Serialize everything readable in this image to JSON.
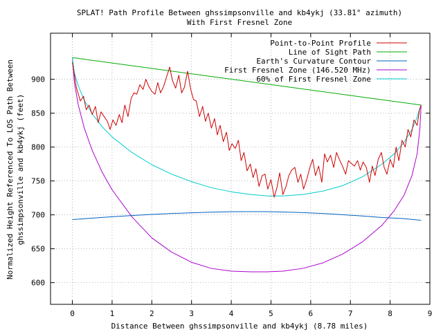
{
  "chart_data": {
    "type": "line",
    "title": "SPLAT! Path Profile Between ghssimpsonville and kb4ykj (33.81° azimuth)",
    "subtitle": "With First Fresnel Zone",
    "xlabel": "Distance Between ghssimpsonville and kb4ykj (8.78 miles)",
    "ylabel_line1": "Normalized Height Referenced To LOS Path Between",
    "ylabel_line2": "ghssimpsonville and kb4ykj (feet)",
    "xlim": [
      -0.55,
      9.0
    ],
    "ylim": [
      568,
      968
    ],
    "xticks": [
      0,
      1,
      2,
      3,
      4,
      5,
      6,
      7,
      8,
      9
    ],
    "yticks": [
      600,
      650,
      700,
      750,
      800,
      850,
      900
    ],
    "grid": true,
    "legend_position": "top-right",
    "series": [
      {
        "name": "Point-to-Point Profile",
        "color": "#cc0000",
        "x": [
          0.0,
          0.1,
          0.2,
          0.28,
          0.35,
          0.42,
          0.5,
          0.58,
          0.65,
          0.72,
          0.8,
          0.88,
          0.95,
          1.02,
          1.1,
          1.18,
          1.25,
          1.32,
          1.4,
          1.48,
          1.55,
          1.62,
          1.7,
          1.78,
          1.85,
          1.92,
          2.0,
          2.08,
          2.15,
          2.22,
          2.3,
          2.38,
          2.45,
          2.52,
          2.6,
          2.68,
          2.75,
          2.82,
          2.9,
          2.98,
          3.05,
          3.12,
          3.2,
          3.28,
          3.35,
          3.42,
          3.5,
          3.58,
          3.65,
          3.72,
          3.8,
          3.88,
          3.95,
          4.02,
          4.1,
          4.18,
          4.25,
          4.32,
          4.4,
          4.48,
          4.55,
          4.62,
          4.7,
          4.78,
          4.85,
          4.92,
          5.0,
          5.08,
          5.15,
          5.22,
          5.3,
          5.38,
          5.45,
          5.52,
          5.6,
          5.68,
          5.75,
          5.82,
          5.9,
          5.98,
          6.05,
          6.12,
          6.2,
          6.28,
          6.35,
          6.42,
          6.5,
          6.58,
          6.65,
          6.72,
          6.8,
          6.88,
          6.95,
          7.02,
          7.1,
          7.18,
          7.25,
          7.32,
          7.4,
          7.48,
          7.55,
          7.62,
          7.7,
          7.78,
          7.85,
          7.92,
          8.0,
          8.08,
          8.15,
          8.22,
          8.3,
          8.38,
          8.45,
          8.52,
          8.6,
          8.68,
          8.74,
          8.78
        ],
        "y": [
          925,
          888,
          868,
          875,
          855,
          862,
          848,
          860,
          836,
          852,
          845,
          838,
          826,
          840,
          832,
          848,
          836,
          862,
          845,
          872,
          880,
          878,
          892,
          885,
          900,
          890,
          882,
          878,
          895,
          880,
          890,
          905,
          918,
          898,
          887,
          906,
          880,
          888,
          912,
          885,
          870,
          868,
          845,
          860,
          838,
          850,
          828,
          842,
          818,
          832,
          808,
          822,
          795,
          805,
          798,
          810,
          780,
          792,
          765,
          775,
          755,
          768,
          742,
          758,
          760,
          738,
          752,
          726,
          740,
          762,
          730,
          742,
          758,
          766,
          770,
          748,
          760,
          738,
          752,
          770,
          782,
          758,
          772,
          748,
          790,
          778,
          788,
          770,
          792,
          782,
          772,
          760,
          780,
          776,
          772,
          780,
          766,
          778,
          770,
          748,
          772,
          758,
          782,
          792,
          770,
          760,
          782,
          770,
          800,
          780,
          810,
          800,
          826,
          815,
          840,
          832,
          855,
          862
        ]
      },
      {
        "name": "Line of Sight Path",
        "color": "#00aa00",
        "x": [
          0.0,
          8.78
        ],
        "y": [
          932,
          862
        ]
      },
      {
        "name": "Earth's Curvature Contour",
        "color": "#0060c0",
        "x": [
          0.0,
          0.5,
          1.0,
          1.5,
          2.0,
          2.5,
          3.0,
          3.5,
          4.0,
          4.39,
          4.8,
          5.3,
          5.8,
          6.3,
          6.8,
          7.3,
          7.8,
          8.3,
          8.78
        ],
        "y": [
          693,
          695.2,
          697.2,
          699.0,
          700.6,
          702.0,
          703.1,
          704.0,
          704.6,
          704.8,
          704.7,
          704.2,
          703.3,
          702.0,
          700.3,
          698.3,
          696.0,
          694.6,
          692
        ]
      },
      {
        "name": "First Fresnel Zone (146.520 MHz)",
        "color": "#aa00cc",
        "x": [
          0.0,
          0.05,
          0.15,
          0.3,
          0.5,
          0.75,
          1.0,
          1.5,
          2.0,
          2.5,
          3.0,
          3.5,
          4.0,
          4.5,
          4.9,
          5.3,
          5.8,
          6.3,
          6.8,
          7.3,
          7.8,
          8.1,
          8.35,
          8.55,
          8.68,
          8.75,
          8.78
        ],
        "y": [
          932,
          895,
          862,
          828,
          795,
          763,
          737,
          697,
          666,
          645,
          630,
          621,
          617,
          616,
          616,
          617,
          621,
          629,
          642,
          660,
          685,
          706,
          729,
          758,
          790,
          828,
          862
        ]
      },
      {
        "name": "60% of First Fresnel Zone",
        "color": "#00cccc",
        "x": [
          0.0,
          0.05,
          0.15,
          0.3,
          0.5,
          0.75,
          1.0,
          1.5,
          2.0,
          2.5,
          3.0,
          3.5,
          4.0,
          4.5,
          4.9,
          5.3,
          5.8,
          6.3,
          6.8,
          7.3,
          7.8,
          8.1,
          8.35,
          8.55,
          8.68,
          8.75,
          8.78
        ],
        "y": [
          932,
          910,
          890,
          869,
          849,
          830,
          815,
          792,
          774,
          760,
          749,
          740,
          734,
          730,
          728,
          728,
          730,
          735,
          743,
          756,
          775,
          790,
          807,
          826,
          844,
          858,
          862
        ]
      }
    ]
  }
}
